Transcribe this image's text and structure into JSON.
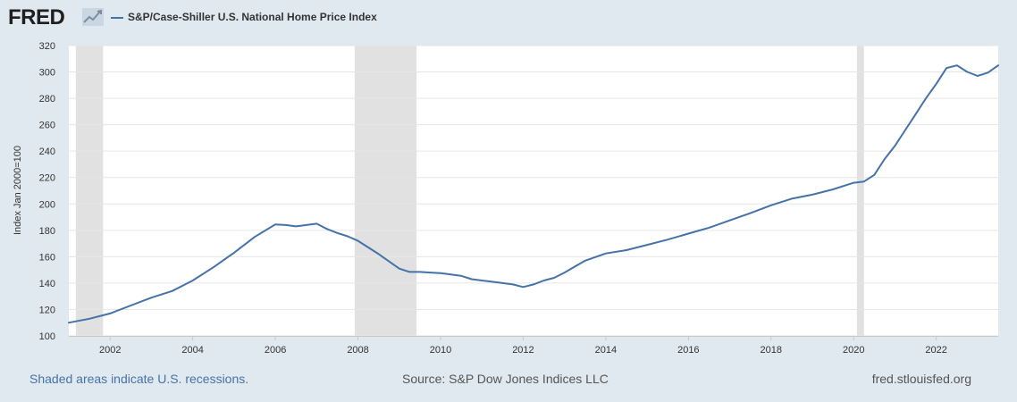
{
  "header": {
    "logo_text": "FRED",
    "logo_icon": "trend-line-icon"
  },
  "footer": {
    "recession_note": "Shaded areas indicate U.S. recessions.",
    "source": "Source: S&P Dow Jones Indices LLC",
    "site": "fred.stlouisfed.org"
  },
  "chart_data": {
    "type": "line",
    "ylabel": "Index Jan 2000=100",
    "ylim": [
      100,
      320
    ],
    "xlim": [
      2001.0,
      2023.5
    ],
    "y_ticks": [
      100,
      120,
      140,
      160,
      180,
      200,
      220,
      240,
      260,
      280,
      300,
      320
    ],
    "x_ticks": [
      2002,
      2004,
      2006,
      2008,
      2010,
      2012,
      2014,
      2016,
      2018,
      2020,
      2022
    ],
    "grid": true,
    "legend_position": "top-left",
    "line_color": "#4572a7",
    "recession_color": "#e1e1e1",
    "recessions": [
      {
        "start": 2001.17,
        "end": 2001.83
      },
      {
        "start": 2007.92,
        "end": 2009.42
      },
      {
        "start": 2020.08,
        "end": 2020.25
      }
    ],
    "series": [
      {
        "name": "S&P/Case-Shiller U.S. National Home Price Index",
        "x": [
          2001.0,
          2001.5,
          2002.0,
          2002.5,
          2003.0,
          2003.5,
          2004.0,
          2004.5,
          2005.0,
          2005.5,
          2006.0,
          2006.25,
          2006.5,
          2006.75,
          2007.0,
          2007.25,
          2007.5,
          2007.75,
          2008.0,
          2008.5,
          2009.0,
          2009.25,
          2009.5,
          2009.75,
          2010.0,
          2010.25,
          2010.5,
          2010.75,
          2011.0,
          2011.25,
          2011.5,
          2011.75,
          2012.0,
          2012.25,
          2012.5,
          2012.75,
          2013.0,
          2013.5,
          2014.0,
          2014.5,
          2015.0,
          2015.5,
          2016.0,
          2016.5,
          2017.0,
          2017.5,
          2018.0,
          2018.5,
          2019.0,
          2019.5,
          2020.0,
          2020.25,
          2020.5,
          2020.75,
          2021.0,
          2021.25,
          2021.5,
          2021.75,
          2022.0,
          2022.25,
          2022.5,
          2022.75,
          2023.0,
          2023.25,
          2023.5
        ],
        "values": [
          110.0,
          113.0,
          117.0,
          123.0,
          129.0,
          134.0,
          142.0,
          152.0,
          163.0,
          175.0,
          184.5,
          184.0,
          183.0,
          184.0,
          185.0,
          181.0,
          178.0,
          175.5,
          172.0,
          162.0,
          151.0,
          148.5,
          148.5,
          148.0,
          147.5,
          146.5,
          145.5,
          143.0,
          142.0,
          141.0,
          140.0,
          139.0,
          137.0,
          139.0,
          142.0,
          144.0,
          148.0,
          157.0,
          162.5,
          165.0,
          169.0,
          173.0,
          177.5,
          182.0,
          187.5,
          193.0,
          199.0,
          204.0,
          207.0,
          211.0,
          216.0,
          217.0,
          222.0,
          234.0,
          244.0,
          256.0,
          268.0,
          280.0,
          291.0,
          303.0,
          305.0,
          300.0,
          297.0,
          299.5,
          305.0
        ]
      }
    ]
  }
}
